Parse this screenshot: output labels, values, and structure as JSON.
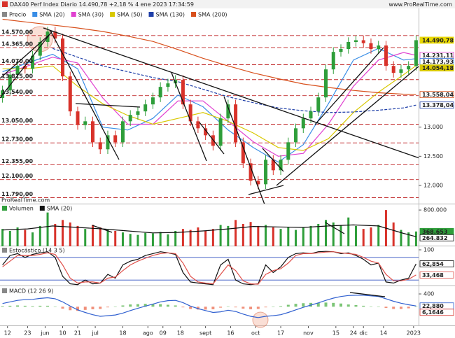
{
  "chart_data": [
    {
      "type": "candlestick",
      "title": "DAX40 Perf Index Diario 14.490,78 +2,18 % 4 ene 2023 17:34:59",
      "source": "www.ProRealTime.com",
      "watermark": "ProRealTime.com",
      "name": "Precio",
      "name_color": "#888888",
      "up_color": "#2e9e3a",
      "down_color": "#d8322a",
      "x": [
        0,
        3,
        6,
        9,
        12,
        15,
        18,
        21,
        24,
        27,
        30,
        33,
        36,
        39,
        42,
        45,
        48,
        51,
        54,
        57,
        60,
        63,
        66,
        69,
        72,
        75,
        78,
        81,
        84,
        87,
        90,
        93,
        96,
        99,
        102,
        105,
        108,
        111,
        114,
        117,
        120,
        123,
        126,
        129,
        132,
        135,
        138,
        141,
        144,
        147,
        150,
        153,
        156,
        159,
        162,
        165
      ],
      "open": [
        13500,
        13630,
        13900,
        14050,
        14000,
        14225,
        14460,
        14640,
        14520,
        13870,
        13270,
        13035,
        13100,
        12740,
        12620,
        12860,
        12740,
        13100,
        13210,
        13270,
        13390,
        13510,
        13690,
        13750,
        13810,
        13390,
        13100,
        12980,
        12860,
        12680,
        13150,
        13390,
        12740,
        12380,
        12080,
        12020,
        12440,
        12260,
        12440,
        12740,
        12980,
        13150,
        13270,
        13510,
        13990,
        14290,
        14340,
        14460,
        14490,
        14440,
        14340,
        14400,
        14050,
        13930,
        13990,
        14050
      ],
      "high": [
        13710,
        13980,
        14130,
        14130,
        14305,
        14540,
        14720,
        14720,
        14600,
        13950,
        13350,
        13180,
        13180,
        12820,
        12940,
        12940,
        13180,
        13290,
        13350,
        13470,
        13590,
        13770,
        13830,
        13890,
        13890,
        13470,
        13180,
        13060,
        12940,
        13230,
        13470,
        13470,
        12820,
        12460,
        12160,
        12520,
        12520,
        12520,
        12820,
        13060,
        13230,
        13350,
        13590,
        14070,
        14370,
        14420,
        14540,
        14570,
        14570,
        14520,
        14480,
        14480,
        14130,
        14070,
        14130,
        14570
      ],
      "low": [
        13420,
        13550,
        13820,
        13920,
        13920,
        14145,
        14380,
        14440,
        13790,
        13190,
        12955,
        12955,
        12660,
        12540,
        12540,
        12660,
        12660,
        13020,
        13130,
        13190,
        13310,
        13430,
        13610,
        13670,
        13310,
        13020,
        12900,
        12780,
        12600,
        12600,
        13070,
        12660,
        12300,
        12000,
        11940,
        11940,
        12180,
        12180,
        12360,
        12660,
        12900,
        13070,
        13190,
        13430,
        13910,
        14210,
        14260,
        14380,
        14360,
        14260,
        14260,
        13970,
        13850,
        13850,
        13910,
        13970
      ],
      "close": [
        13630,
        13900,
        14050,
        14000,
        14225,
        14460,
        14640,
        14520,
        13870,
        13270,
        13035,
        13100,
        12740,
        12620,
        12860,
        12740,
        13100,
        13210,
        13270,
        13390,
        13510,
        13690,
        13750,
        13810,
        13390,
        13100,
        12980,
        12860,
        12680,
        13150,
        13390,
        12740,
        12380,
        12080,
        12020,
        12440,
        12260,
        12440,
        12740,
        12980,
        13150,
        13270,
        13510,
        13990,
        14290,
        14340,
        14460,
        14490,
        14440,
        14340,
        14400,
        14050,
        13930,
        13990,
        14050,
        14490.78
      ],
      "series": [
        {
          "name": "SMA (20)",
          "color": "#3a8ee6",
          "x": [
            0,
            10,
            20,
            30,
            40,
            50,
            60,
            70,
            80,
            90,
            100,
            110,
            120,
            130,
            140,
            150,
            160,
            165
          ],
          "values": [
            13950,
            14100,
            14250,
            14000,
            13000,
            12950,
            13150,
            13550,
            13350,
            12950,
            12650,
            12400,
            12700,
            13400,
            14150,
            14350,
            14150,
            14173.93
          ]
        },
        {
          "name": "SMA (30)",
          "color": "#e040d0",
          "x": [
            0,
            10,
            20,
            30,
            40,
            50,
            60,
            70,
            80,
            90,
            100,
            110,
            120,
            130,
            140,
            150,
            160,
            165
          ],
          "values": [
            13900,
            14050,
            14200,
            14100,
            13500,
            13050,
            13050,
            13450,
            13450,
            13100,
            12750,
            12500,
            12550,
            13050,
            13700,
            14150,
            14280,
            14231.11
          ]
        },
        {
          "name": "SMA (50)",
          "color": "#d8c800",
          "x": [
            0,
            10,
            20,
            30,
            40,
            50,
            60,
            70,
            80,
            90,
            100,
            110,
            120,
            130,
            140,
            150,
            160,
            165
          ],
          "values": [
            14000,
            14000,
            14050,
            13700,
            13400,
            13200,
            13050,
            13150,
            13250,
            13100,
            12900,
            12650,
            12600,
            12800,
            13250,
            13600,
            13900,
            14054.18
          ]
        },
        {
          "name": "SMA (130)",
          "color": "#1f3fa8",
          "dashed": true,
          "x": [
            0,
            10,
            20,
            30,
            40,
            50,
            60,
            70,
            80,
            90,
            100,
            110,
            120,
            130,
            140,
            150,
            160,
            165
          ],
          "values": [
            null,
            null,
            14350,
            14200,
            14050,
            13950,
            13850,
            13780,
            13650,
            13520,
            13420,
            13330,
            13280,
            13250,
            13260,
            13290,
            13330,
            13378.04
          ]
        },
        {
          "name": "SMA (200)",
          "color": "#d8501c",
          "x": [
            0,
            10,
            20,
            30,
            40,
            50,
            60,
            70,
            80,
            90,
            100,
            110,
            120,
            130,
            140,
            150,
            160,
            165
          ],
          "values": [
            14850,
            14800,
            14750,
            14700,
            14640,
            14560,
            14470,
            14330,
            14180,
            14050,
            13930,
            13830,
            13740,
            13680,
            13630,
            13590,
            13565,
            13558.04
          ]
        }
      ],
      "ylim": [
        11700,
        15000
      ],
      "yticks": [
        {
          "value": 13000,
          "label": "13.000"
        },
        {
          "value": 12500,
          "label": "12.500"
        },
        {
          "value": 12000,
          "label": "12.000"
        }
      ],
      "levels_color": "#c0282a",
      "levels": [
        {
          "value": 14570,
          "label": "14.570,00"
        },
        {
          "value": 14365,
          "label": "14.365,00"
        },
        {
          "value": 14070,
          "label": "14.070,00"
        },
        {
          "value": 13815,
          "label": "13.815,00"
        },
        {
          "value": 13540,
          "label": "13.540,00"
        },
        {
          "value": 13050,
          "label": "13.050,00"
        },
        {
          "value": 12730,
          "label": "12.730,00"
        },
        {
          "value": 12355,
          "label": "12.355,00"
        },
        {
          "value": 12100,
          "label": "12.100,00"
        },
        {
          "value": 11790,
          "label": "11.790,00"
        }
      ],
      "price_labels": [
        {
          "value": 14490.78,
          "label": "14.490,78",
          "color": "#e8d800",
          "filled": true
        },
        {
          "value": 14231.11,
          "label": "14.231,11",
          "color": "#e040d0"
        },
        {
          "value": 14173.93,
          "label": "14.173,93",
          "color": "#3a8ee6"
        },
        {
          "value": 14054.18,
          "label": "14.054,18",
          "color": "#d8c800",
          "filled": true
        },
        {
          "value": 13558.04,
          "label": "13.558,04",
          "color": "#d8501c"
        },
        {
          "value": 13378.04,
          "label": "13.378,04",
          "color": "#1f3fa8"
        }
      ]
    },
    {
      "type": "bar",
      "name": "Volumen",
      "up_color": "#2e9e3a",
      "down_color": "#d8322a",
      "name_color": "#2e9e3a",
      "values": [
        420000,
        380000,
        450000,
        400000,
        350000,
        480000,
        750000,
        520000,
        600000,
        550000,
        480000,
        420000,
        500000,
        450000,
        400000,
        380000,
        350000,
        320000,
        300000,
        340000,
        330000,
        360000,
        310000,
        380000,
        420000,
        400000,
        450000,
        380000,
        420000,
        500000,
        480000,
        600000,
        520000,
        560000,
        480000,
        500000,
        450000,
        420000,
        460000,
        400000,
        450000,
        480000,
        520000,
        600000,
        550000,
        500000,
        650000,
        480000,
        420000,
        450000,
        500000,
        800000,
        550000,
        400000,
        350000,
        368653
      ],
      "series": [
        {
          "name": "SMA (20)",
          "color": "#111111",
          "x": [
            0,
            10,
            20,
            30,
            40,
            50,
            60,
            70,
            80,
            90,
            100,
            110,
            120,
            130,
            140,
            150,
            160,
            165
          ],
          "values": [
            400000,
            420000,
            480000,
            450000,
            420000,
            380000,
            340000,
            350000,
            380000,
            420000,
            470000,
            460000,
            450000,
            480000,
            500000,
            480000,
            330000,
            264832
          ]
        }
      ],
      "ylim": [
        0,
        900000
      ],
      "yticks": [
        {
          "value": 800000,
          "label": "800.000"
        }
      ],
      "price_labels": [
        {
          "value": 368653,
          "label": "368.653",
          "color": "#2e9e3a",
          "filled": true
        },
        {
          "value": 264832,
          "label": "264.832",
          "color": "#111111"
        }
      ]
    },
    {
      "type": "line",
      "title": "Estocástico (14 3 5)",
      "name_color": "#888888",
      "bands": [
        20,
        80
      ],
      "bands_color": "#3050c0",
      "series": [
        {
          "color": "#111111",
          "values": [
            60,
            85,
            90,
            80,
            88,
            92,
            95,
            80,
            30,
            10,
            8,
            20,
            10,
            12,
            35,
            25,
            60,
            70,
            75,
            85,
            90,
            95,
            92,
            88,
            40,
            15,
            12,
            10,
            8,
            60,
            75,
            20,
            10,
            8,
            10,
            60,
            40,
            55,
            80,
            90,
            92,
            90,
            95,
            96,
            95,
            90,
            92,
            85,
            75,
            60,
            65,
            15,
            12,
            20,
            25,
            62.854
          ]
        },
        {
          "color": "#e0504a",
          "values": [
            55,
            70,
            85,
            85,
            85,
            88,
            92,
            88,
            60,
            25,
            12,
            15,
            15,
            12,
            25,
            28,
            45,
            60,
            70,
            78,
            85,
            90,
            92,
            90,
            65,
            30,
            15,
            12,
            10,
            35,
            60,
            45,
            18,
            10,
            9,
            35,
            45,
            50,
            65,
            85,
            90,
            90,
            92,
            94,
            95,
            92,
            90,
            88,
            80,
            70,
            65,
            35,
            18,
            18,
            22,
            33.468
          ]
        }
      ],
      "ylim": [
        0,
        100
      ],
      "yticks": [
        100
      ],
      "price_labels": [
        {
          "value": 62.854,
          "label": "62,854",
          "color": "#111111"
        },
        {
          "value": 33.468,
          "label": "33,468",
          "color": "#e0504a"
        }
      ]
    },
    {
      "type": "macd",
      "title": "MACD (12 26 9)",
      "name_color": "#888888",
      "pos_color": "#7cc576",
      "neg_color": "#f0907a",
      "series": [
        {
          "kind": "bar",
          "values": [
            20,
            30,
            40,
            30,
            20,
            30,
            30,
            0,
            -60,
            -110,
            -130,
            -100,
            -80,
            -70,
            -20,
            0,
            40,
            70,
            80,
            90,
            80,
            80,
            60,
            40,
            -20,
            -70,
            -90,
            -90,
            -80,
            -30,
            10,
            -20,
            -60,
            -80,
            -70,
            -20,
            0,
            20,
            60,
            90,
            110,
            120,
            120,
            130,
            120,
            100,
            70,
            50,
            30,
            10,
            0,
            -40,
            -70,
            -70,
            -50,
            6.1646
          ]
        },
        {
          "kind": "line",
          "color": "#3060d0",
          "values": [
            100,
            150,
            200,
            220,
            230,
            260,
            280,
            250,
            150,
            20,
            -100,
            -180,
            -250,
            -300,
            -280,
            -260,
            -200,
            -120,
            -50,
            20,
            80,
            150,
            190,
            200,
            130,
            20,
            -60,
            -120,
            -180,
            -160,
            -110,
            -150,
            -230,
            -300,
            -340,
            -300,
            -280,
            -250,
            -180,
            -100,
            -20,
            50,
            120,
            200,
            270,
            320,
            350,
            360,
            360,
            340,
            320,
            250,
            170,
            110,
            60,
            22.88
          ]
        }
      ],
      "ylim": [
        -520,
        620
      ],
      "yticks": [
        400
      ],
      "price_labels": [
        {
          "value": 22.88,
          "label": "22,880",
          "color": "#3060d0"
        },
        {
          "value": 6.1646,
          "label": "6,1646",
          "color": "#d8322a"
        }
      ],
      "xlim": [
        -1,
        166
      ],
      "xticks": [
        {
          "value": 2,
          "label": "12"
        },
        {
          "value": 10,
          "label": "23"
        },
        {
          "value": 17,
          "label": "jun"
        },
        {
          "value": 24,
          "label": "10"
        },
        {
          "value": 30,
          "label": "21"
        },
        {
          "value": 37,
          "label": "jul"
        },
        {
          "value": 48,
          "label": "18"
        },
        {
          "value": 58,
          "label": "ago"
        },
        {
          "value": 64,
          "label": "09"
        },
        {
          "value": 71,
          "label": "18"
        },
        {
          "value": 81,
          "label": "sept"
        },
        {
          "value": 91,
          "label": "16"
        },
        {
          "value": 101,
          "label": "oct"
        },
        {
          "value": 111,
          "label": "17"
        },
        {
          "value": 122,
          "label": "nov"
        },
        {
          "value": 133,
          "label": "15"
        },
        {
          "value": 140,
          "label": "24"
        },
        {
          "value": 144,
          "label": "dic"
        },
        {
          "value": 152,
          "label": "14"
        },
        {
          "value": 164,
          "label": "2023"
        }
      ]
    }
  ]
}
